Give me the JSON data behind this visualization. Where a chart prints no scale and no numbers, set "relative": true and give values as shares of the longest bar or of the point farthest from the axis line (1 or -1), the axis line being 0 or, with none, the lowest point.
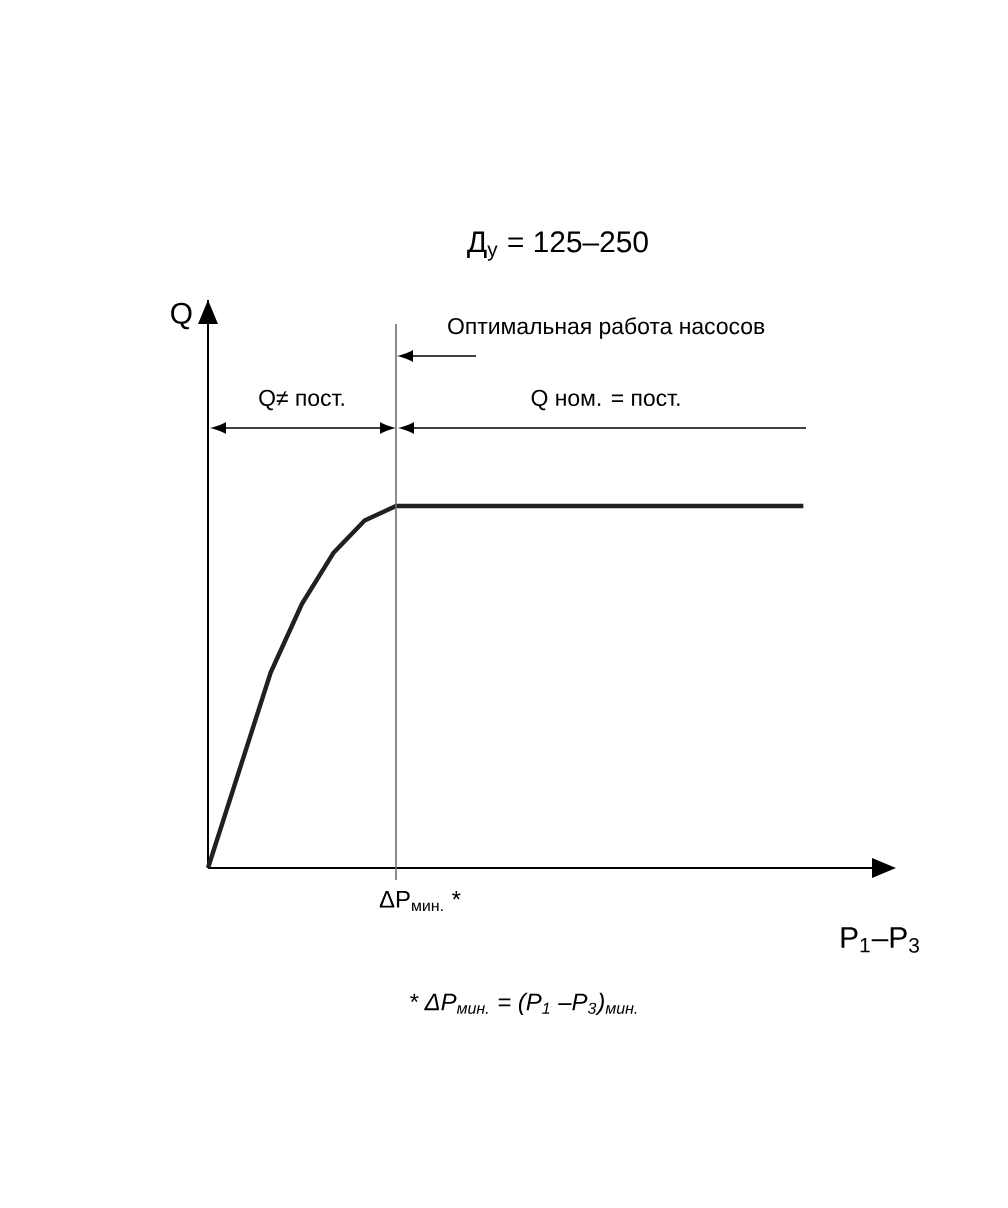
{
  "chart_data": {
    "type": "line",
    "title": "Д$_{у}$ = 125–250",
    "xlabel": "P$_{1}$–P$_{3}$",
    "relative": true,
    "categories": [
      null,
      null,
      null,
      null,
      null,
      null,
      null,
      null,
      null,
      null,
      null,
      null,
      null,
      null,
      null,
      null,
      null,
      null,
      null,
      null
    ],
    "series": [
      {
        "color": "#231f20",
        "values": [
          0,
          0.27,
          0.54,
          0.73,
          0.87,
          0.96,
          1,
          1,
          1,
          1,
          1,
          1,
          1,
          1,
          1,
          1,
          1,
          1,
          1,
          1
        ]
      }
    ],
    "annotations": [
      "Q",
      "Оптимальная работа насосов",
      "Q≠ пост.",
      "Q ном. = пост.",
      "ΔP$_{мин.}$ *",
      "* ΔP$_{мин.}$ = (P$_{1}$ –P$_{3}$)$_{мин.}$"
    ],
    "marker": "none",
    "line_style": "solid"
  }
}
